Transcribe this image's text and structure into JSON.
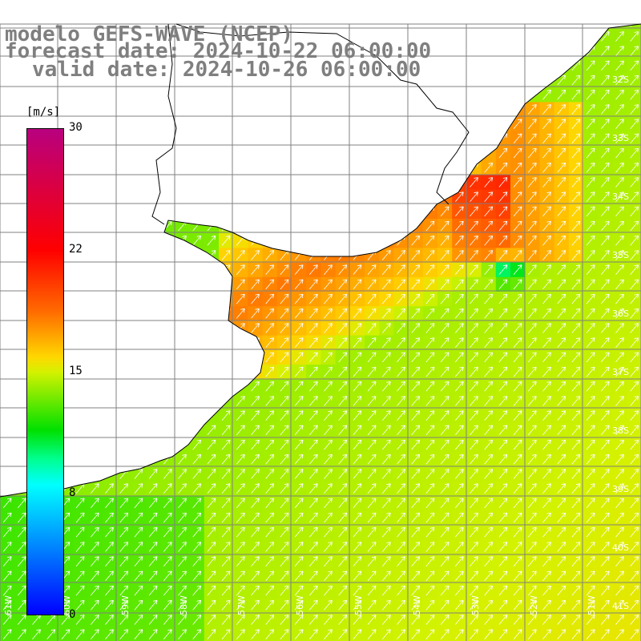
{
  "title": {
    "model": "modelo GEFS-WAVE (NCEP)",
    "forecast": "forecast date: 2024-10-22 06:00:00",
    "valid": "valid date: 2024-10-26 06:00:00"
  },
  "colorbar": {
    "units": "[m/s]",
    "ticks": [
      "30",
      "22",
      "15",
      "8",
      "0"
    ],
    "tick_values": [
      30,
      22,
      15,
      8,
      0
    ],
    "range": [
      0,
      30
    ],
    "colors": {
      "30": "#b8007f",
      "22": "#ff4000",
      "15": "#e6ff00",
      "8": "#00ffff",
      "0": "#0000ff"
    }
  },
  "map": {
    "lat_labels": [
      "32S",
      "33S",
      "34S",
      "35S",
      "36S",
      "37S",
      "38S",
      "39S",
      "40S",
      "41S"
    ],
    "lon_labels": [
      "61W",
      "60W",
      "59W",
      "58W",
      "57W",
      "56W",
      "55W",
      "54W",
      "53W",
      "52W",
      "51W"
    ],
    "land_color": "#ffffff",
    "grid_color": "#808080",
    "coast_color": "#000000",
    "arrow_color": "#ffffff",
    "dominant_wind_direction": "northeast"
  }
}
